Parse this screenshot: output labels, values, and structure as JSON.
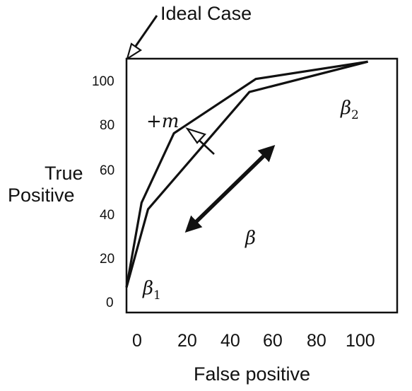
{
  "annotations": {
    "ideal_case": "Ideal Case",
    "plus_m": "+m",
    "beta": "β",
    "beta_1": "β",
    "beta_1_sub": "1",
    "beta_2": "β",
    "beta_2_sub": "2"
  },
  "axes": {
    "y_title_line1": "True",
    "y_title_line2": "Positive",
    "x_title": "False positive",
    "y_ticks": [
      "100",
      "80",
      "60",
      "40",
      "20",
      "0"
    ],
    "x_ticks": [
      "0",
      "20",
      "40",
      "60",
      "80",
      "100"
    ]
  },
  "curves": {
    "upper": {
      "points": [
        [
          0,
          8
        ],
        [
          7,
          47
        ],
        [
          22,
          79
        ],
        [
          60,
          104
        ],
        [
          112,
          112
        ]
      ]
    },
    "lower": {
      "points": [
        [
          0,
          8
        ],
        [
          10,
          44
        ],
        [
          57,
          98
        ],
        [
          112,
          112
        ]
      ]
    }
  },
  "arrows": {
    "double_arrow_icon": "double-headed-arrow",
    "ideal_case_arrow_icon": "hollow-arrow",
    "plus_m_arrow_icon": "hollow-arrow"
  },
  "colors": {
    "ink": "#111111",
    "background": "#ffffff"
  }
}
